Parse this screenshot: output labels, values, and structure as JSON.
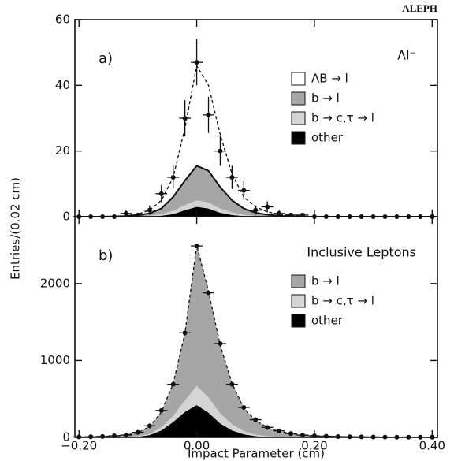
{
  "chart_data": [
    {
      "type": "area",
      "annotation": "ALEPH",
      "panel_label": "a)",
      "subtitle": "Λl⁻",
      "ylabel": "Entries/(0.02 cm)",
      "legend": "upper right",
      "x": [
        -0.2,
        -0.18,
        -0.16,
        -0.14,
        -0.12,
        -0.1,
        -0.08,
        -0.06,
        -0.04,
        -0.02,
        0,
        0.02,
        0.04,
        0.06,
        0.08,
        0.1,
        0.12,
        0.14,
        0.16,
        0.18,
        0.2,
        0.22,
        0.24,
        0.26,
        0.28,
        0.3,
        0.32,
        0.34,
        0.36,
        0.38,
        0.4
      ],
      "xlim": [
        -0.207,
        0.409
      ],
      "ylim": [
        0,
        60
      ],
      "yticks": [
        0,
        20,
        40,
        60
      ],
      "series": [
        {
          "name": "ΛB → l",
          "color": "#ffffff",
          "line": "dashed",
          "values": [
            0,
            0,
            0,
            0.1,
            0.1,
            0.3,
            1,
            2.5,
            6,
            16,
            30.5,
            26,
            16,
            8,
            3.5,
            1.8,
            0.9,
            0.5,
            0.3,
            0.2,
            0,
            0,
            0,
            0,
            0,
            0,
            0,
            0,
            0,
            0,
            0
          ]
        },
        {
          "name": "b → l",
          "color": "#a6a6a6",
          "line": "solid",
          "values": [
            0,
            0,
            0,
            0.1,
            0.2,
            0.4,
            0.7,
            1.7,
            4.2,
            7.5,
            10.5,
            9.7,
            6.5,
            3.7,
            1.9,
            1.0,
            0.5,
            0.3,
            0.1,
            0,
            0,
            0,
            0,
            0,
            0,
            0,
            0,
            0,
            0,
            0,
            0
          ]
        },
        {
          "name": "b → c,τ → l",
          "color": "#d4d4d4",
          "line": "none",
          "values": [
            0,
            0,
            0,
            0,
            0,
            0.1,
            0.2,
            0.5,
            1,
            1.5,
            2,
            1.8,
            1.3,
            0.8,
            0.4,
            0.2,
            0.1,
            0,
            0,
            0,
            0,
            0,
            0,
            0,
            0,
            0,
            0,
            0,
            0,
            0,
            0
          ]
        },
        {
          "name": "other",
          "color": "#000000",
          "line": "none",
          "values": [
            0,
            0,
            0,
            0,
            0,
            0,
            0.1,
            0.3,
            0.8,
            2,
            3,
            2.5,
            1.2,
            0.5,
            0.2,
            0,
            0,
            0,
            0,
            0,
            0,
            0,
            0,
            0,
            0,
            0,
            0,
            0,
            0,
            0,
            0
          ]
        }
      ],
      "data_values": [
        0,
        0,
        0,
        0,
        1,
        0.5,
        2,
        7,
        12,
        30,
        47,
        31,
        20,
        12,
        8,
        2,
        3,
        1,
        0.5,
        0.5,
        0,
        0,
        0,
        0,
        0,
        0,
        0,
        0,
        0,
        0,
        0
      ],
      "data_errors": [
        0,
        0,
        0,
        0,
        1,
        0.7,
        1.4,
        2.6,
        3.5,
        5.5,
        7,
        5.5,
        4.5,
        3.5,
        2.8,
        1.4,
        1.7,
        1,
        0.7,
        0.7,
        0,
        0,
        0,
        0,
        0,
        0,
        0,
        0,
        0,
        0,
        0
      ]
    },
    {
      "type": "area",
      "panel_label": "b)",
      "subtitle": "Inclusive Leptons",
      "xlabel": "Impact Parameter (cm)",
      "legend": "upper right",
      "x": [
        -0.2,
        -0.18,
        -0.16,
        -0.14,
        -0.12,
        -0.1,
        -0.08,
        -0.06,
        -0.04,
        -0.02,
        0,
        0.02,
        0.04,
        0.06,
        0.08,
        0.1,
        0.12,
        0.14,
        0.16,
        0.18,
        0.2,
        0.22,
        0.24,
        0.26,
        0.28,
        0.3,
        0.32,
        0.34,
        0.36,
        0.38,
        0.4
      ],
      "xlim": [
        -0.207,
        0.409
      ],
      "xticks": [
        {
          "value": -0.2,
          "label": "−0.20"
        },
        {
          "value": 0,
          "label": "0.00"
        },
        {
          "value": 0.2,
          "label": "0.20"
        },
        {
          "value": 0.4,
          "label": "0.40"
        }
      ],
      "ylim": [
        0,
        2870
      ],
      "yticks": [
        0,
        1000,
        2000
      ],
      "series": [
        {
          "name": "b → l",
          "color": "#a6a6a6",
          "line": "dashed",
          "values": [
            5,
            8,
            12,
            17,
            25,
            45,
            95,
            200,
            420,
            870,
            1830,
            1380,
            890,
            530,
            300,
            185,
            115,
            73,
            47,
            28,
            19,
            15,
            10,
            8,
            6,
            5,
            4,
            3,
            3,
            2,
            2
          ]
        },
        {
          "name": "b → c,τ → l",
          "color": "#d4d4d4",
          "line": "none",
          "values": [
            0,
            0,
            0,
            1,
            3,
            7,
            15,
            40,
            80,
            150,
            250,
            200,
            130,
            80,
            40,
            20,
            10,
            5,
            3,
            2,
            1,
            0,
            0,
            0,
            0,
            0,
            0,
            0,
            0,
            0,
            0
          ]
        },
        {
          "name": "other",
          "color": "#000000",
          "line": "none",
          "values": [
            0,
            0,
            0,
            0,
            2,
            8,
            30,
            90,
            200,
            330,
            420,
            320,
            180,
            90,
            40,
            15,
            5,
            2,
            0,
            0,
            0,
            0,
            0,
            0,
            0,
            0,
            0,
            0,
            0,
            0,
            0
          ]
        }
      ],
      "data_values": [
        5,
        8,
        12,
        20,
        30,
        65,
        150,
        350,
        690,
        1360,
        2490,
        1880,
        1220,
        690,
        390,
        230,
        130,
        85,
        50,
        30,
        20,
        15,
        10,
        8,
        6,
        5,
        4,
        3,
        3,
        2,
        2
      ]
    }
  ]
}
